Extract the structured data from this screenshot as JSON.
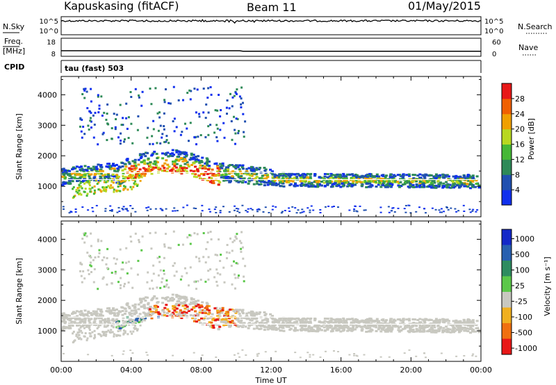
{
  "header": {
    "station": "Kapuskasing (fitACF)",
    "beam": "Beam 11",
    "date": "01/May/2015"
  },
  "noise_panel": {
    "left_label": "N.Sky",
    "right_label": "N.Search",
    "left_ticks": [
      "10^5",
      "10^0"
    ],
    "right_ticks": [
      "10^5",
      "10^0"
    ]
  },
  "freq_panel": {
    "left_label_line1": "Freq.",
    "left_label_line2": "[MHz]",
    "left_ticks": [
      "18",
      "8"
    ],
    "right_ticks": [
      "60",
      "0"
    ],
    "right_label": "Nave"
  },
  "cpid": {
    "label": "CPID",
    "value": "tau (fast) 503"
  },
  "chart_data": [
    {
      "type": "heatmap",
      "quantity": "Power",
      "ylabel": "Slant Range [km]",
      "yticks": [
        "1000",
        "2000",
        "3000",
        "4000"
      ],
      "ylim": [
        0,
        4600
      ],
      "xlim": [
        0,
        24
      ],
      "colorbar_label": "Power [dB]",
      "colorbar_ticks": [
        "4",
        "8",
        "12",
        "16",
        "20",
        "24",
        "28"
      ],
      "colorbar_colors": [
        "#1030ee",
        "#2050b0",
        "#2e8a58",
        "#46b836",
        "#b8d820",
        "#f0a000",
        "#f06000",
        "#e81818"
      ]
    },
    {
      "type": "heatmap",
      "quantity": "Velocity",
      "ylabel": "Slant Range [km]",
      "yticks": [
        "1000",
        "2000",
        "3000",
        "4000"
      ],
      "ylim": [
        0,
        4600
      ],
      "xlim": [
        0,
        24
      ],
      "colorbar_label": "Velocity [m s⁻¹]",
      "colorbar_ticks": [
        "1000",
        "500",
        "100",
        "25",
        "-25",
        "-100",
        "-500",
        "-1000"
      ],
      "colorbar_colors": [
        "#1428c8",
        "#2860b0",
        "#2e8c60",
        "#5cc84a",
        "#c8c8c0",
        "#f0b020",
        "#f07010",
        "#e81818"
      ],
      "xlabel": "Time UT",
      "xticks": [
        "00:00",
        "04:00",
        "08:00",
        "12:00",
        "16:00",
        "20:00",
        "00:00"
      ]
    }
  ]
}
